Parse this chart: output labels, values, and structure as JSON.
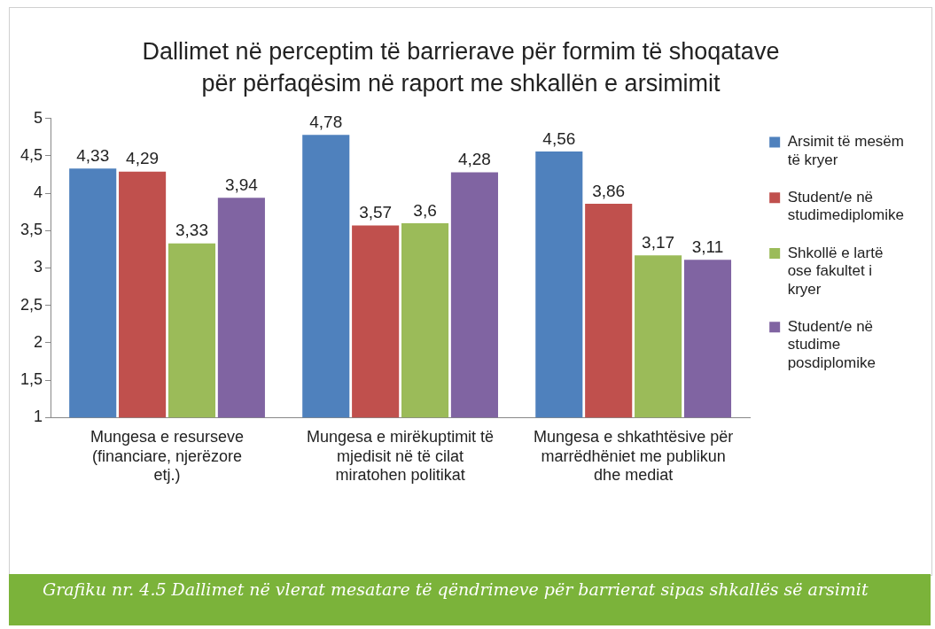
{
  "chart_data": {
    "type": "bar",
    "title": "Dallimet në perceptim të barrierave për formim të shoqatave për përfaqësim në raport me shkallën e arsimimit",
    "categories": [
      "Mungesa e resurseve (financiare, njerëzore etj.)",
      "Mungesa e mirëkuptimit të mjedisit në të cilat miratohen politikat",
      "Mungesa e shkathtësive për marrëdhëniet me publikun dhe mediat"
    ],
    "series": [
      {
        "name": "Arsimit të mesëm të kryer",
        "color": "#4f81bd",
        "values": [
          4.33,
          4.78,
          4.56
        ],
        "value_labels": [
          "4,33",
          "4,78",
          "4,56"
        ]
      },
      {
        "name": "Student/e në studimediplomike",
        "color": "#c0504d",
        "values": [
          4.29,
          3.57,
          3.86
        ],
        "value_labels": [
          "4,29",
          "3,57",
          "3,86"
        ]
      },
      {
        "name": "Shkollë e lartë ose fakultet i kryer",
        "color": "#9bbb59",
        "values": [
          3.33,
          3.6,
          3.17
        ],
        "value_labels": [
          "3,33",
          "3,6",
          "3,17"
        ]
      },
      {
        "name": "Student/e në studime posdiplomike",
        "color": "#8064a2",
        "values": [
          3.94,
          4.28,
          3.11
        ],
        "value_labels": [
          "3,94",
          "4,28",
          "3,11"
        ]
      }
    ],
    "ylim": [
      1,
      5
    ],
    "yticks": [
      1,
      {
        "value": 1.5,
        "label": "1,5"
      },
      2,
      {
        "value": 2.5,
        "label": "2,5"
      },
      3,
      {
        "value": 3.5,
        "label": "3,5"
      },
      4,
      {
        "value": 4.5,
        "label": "4,5"
      },
      5
    ],
    "grid": false,
    "legend": "right",
    "annotations": [
      "Grafiku nr. 4.5 Dallimet në vlerat mesatare të qëndrimeve për barrierat sipas shkallës së arsimit"
    ]
  }
}
